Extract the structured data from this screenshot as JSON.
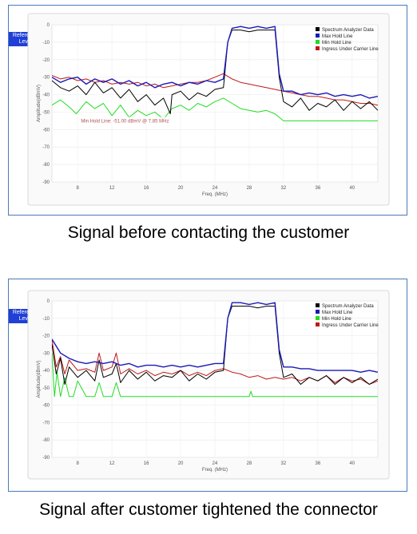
{
  "controls": {
    "reference_level_label": "Reference Level",
    "arrow_up": "▲",
    "arrow_down": "▼"
  },
  "colors": {
    "spectrum": "#000000",
    "max_hold": "#1a1ab8",
    "min_hold": "#22dd22",
    "ingress": "#c01818",
    "panel_border": "#4a7ab8",
    "button": "#1f3fd6"
  },
  "captions": {
    "before": "Signal before contacting the customer",
    "after": "Signal after customer tightened the connector"
  },
  "chart_data": [
    {
      "type": "line",
      "xlabel": "Freq. (MHz)",
      "ylabel": "Amplitude(dBmV)",
      "xlim": [
        5,
        43
      ],
      "ylim": [
        -90,
        0
      ],
      "xticks": [
        8,
        12,
        16,
        20,
        24,
        28,
        32,
        36,
        40
      ],
      "yticks": [
        0,
        -10,
        -20,
        -30,
        -40,
        -50,
        -60,
        -70,
        -80,
        -90
      ],
      "grid": true,
      "legend_position": "top-right",
      "annotation": "Min Hold Line: -51.00 dBmV @ 7.85 MHz",
      "series": [
        {
          "name": "Spectrum Analyzer Data",
          "color": "#000000",
          "x": [
            5,
            6,
            7,
            8,
            9,
            10,
            11,
            12,
            13,
            14,
            15,
            16,
            17,
            18,
            18.8,
            19,
            20,
            21,
            22,
            23,
            24,
            25,
            25.5,
            26,
            27,
            28,
            29,
            30,
            31,
            31.5,
            32,
            33,
            34,
            35,
            36,
            37,
            38,
            39,
            40,
            41,
            42,
            43
          ],
          "y": [
            -32,
            -36,
            -38,
            -35,
            -40,
            -33,
            -39,
            -36,
            -42,
            -37,
            -44,
            -40,
            -46,
            -42,
            -51,
            -40,
            -38,
            -43,
            -39,
            -41,
            -37,
            -36,
            -10,
            -3,
            -3,
            -4,
            -3,
            -3,
            -3,
            -30,
            -44,
            -47,
            -42,
            -49,
            -45,
            -47,
            -43,
            -49,
            -44,
            -48,
            -44,
            -49
          ]
        },
        {
          "name": "Max Hold Line",
          "color": "#1a1ab8",
          "x": [
            5,
            6,
            7,
            8,
            9,
            10,
            11,
            12,
            13,
            14,
            15,
            16,
            17,
            18,
            19,
            20,
            21,
            22,
            23,
            24,
            25,
            25.5,
            26,
            27,
            28,
            29,
            30,
            31,
            31.5,
            32,
            33,
            34,
            35,
            36,
            37,
            38,
            39,
            40,
            41,
            42,
            43
          ],
          "y": [
            -30,
            -33,
            -31,
            -30,
            -34,
            -31,
            -33,
            -31,
            -34,
            -32,
            -35,
            -33,
            -36,
            -34,
            -33,
            -35,
            -33,
            -34,
            -32,
            -33,
            -31,
            -10,
            -2,
            -1,
            -2,
            -1,
            -2,
            -1,
            -28,
            -38,
            -38,
            -40,
            -39,
            -40,
            -39,
            -41,
            -40,
            -41,
            -40,
            -42,
            -41
          ]
        },
        {
          "name": "Min Hold Line",
          "color": "#22dd22",
          "x": [
            5,
            6,
            7,
            7.85,
            9,
            10,
            11,
            12,
            13,
            14,
            15,
            16,
            17,
            18,
            19,
            20,
            21,
            22,
            23,
            24,
            25,
            26,
            27,
            28,
            29,
            30,
            31,
            32,
            33,
            34,
            35,
            36,
            37,
            38,
            39,
            40,
            41,
            42,
            43
          ],
          "y": [
            -46,
            -43,
            -47,
            -51,
            -44,
            -48,
            -45,
            -52,
            -46,
            -53,
            -49,
            -52,
            -50,
            -54,
            -48,
            -46,
            -49,
            -45,
            -47,
            -44,
            -42,
            -45,
            -48,
            -49,
            -50,
            -49,
            -51,
            -55,
            -55,
            -55,
            -55,
            -55,
            -55,
            -55,
            -55,
            -55,
            -55,
            -55,
            -55
          ]
        },
        {
          "name": "Ingress Under Carrier Line",
          "color": "#c01818",
          "x": [
            5,
            6,
            7,
            8,
            9,
            10,
            11,
            12,
            13,
            14,
            15,
            16,
            17,
            18,
            19,
            20,
            21,
            22,
            23,
            24,
            25,
            26,
            27,
            28,
            29,
            30,
            31,
            32,
            33,
            34,
            35,
            36,
            37,
            38,
            39,
            40,
            41,
            42,
            43
          ],
          "y": [
            -29,
            -31,
            -30,
            -32,
            -31,
            -33,
            -32,
            -34,
            -33,
            -34,
            -33,
            -35,
            -34,
            -36,
            -35,
            -34,
            -33,
            -33,
            -32,
            -30,
            -28,
            -31,
            -33,
            -34,
            -35,
            -36,
            -37,
            -38,
            -39,
            -40,
            -41,
            -41,
            -42,
            -43,
            -43,
            -44,
            -45,
            -45,
            -46
          ]
        }
      ]
    },
    {
      "type": "line",
      "xlabel": "Freq. (MHz)",
      "ylabel": "Amplitude(dBmV)",
      "xlim": [
        5,
        43
      ],
      "ylim": [
        -90,
        0
      ],
      "xticks": [
        8,
        12,
        16,
        20,
        24,
        28,
        32,
        36,
        40
      ],
      "yticks": [
        0,
        -10,
        -20,
        -30,
        -40,
        -50,
        -60,
        -70,
        -80,
        -90
      ],
      "grid": true,
      "legend_position": "top-right",
      "series": [
        {
          "name": "Spectrum Analyzer Data",
          "color": "#000000",
          "x": [
            5,
            5.5,
            6,
            6.5,
            7,
            8,
            9,
            10,
            10.5,
            11,
            12,
            12.5,
            13,
            14,
            15,
            16,
            17,
            18,
            19,
            20,
            21,
            22,
            23,
            24,
            25,
            25.5,
            26,
            27,
            28,
            29,
            30,
            31,
            31.5,
            32,
            33,
            34,
            35,
            36,
            37,
            38,
            39,
            40,
            41,
            42,
            43
          ],
          "y": [
            -25,
            -42,
            -33,
            -48,
            -38,
            -44,
            -40,
            -46,
            -34,
            -44,
            -42,
            -36,
            -47,
            -40,
            -45,
            -41,
            -46,
            -43,
            -44,
            -40,
            -46,
            -42,
            -45,
            -41,
            -40,
            -10,
            -3,
            -3,
            -3,
            -4,
            -3,
            -3,
            -30,
            -44,
            -42,
            -48,
            -44,
            -46,
            -43,
            -48,
            -44,
            -47,
            -44,
            -48,
            -45
          ]
        },
        {
          "name": "Max Hold Line",
          "color": "#1a1ab8",
          "x": [
            5,
            6,
            7,
            8,
            9,
            10,
            11,
            12,
            13,
            14,
            15,
            16,
            17,
            18,
            19,
            20,
            21,
            22,
            23,
            24,
            25,
            25.5,
            26,
            27,
            28,
            29,
            30,
            31,
            31.5,
            32,
            33,
            34,
            35,
            36,
            37,
            38,
            39,
            40,
            41,
            42,
            43
          ],
          "y": [
            -22,
            -30,
            -33,
            -35,
            -36,
            -35,
            -36,
            -35,
            -37,
            -36,
            -38,
            -37,
            -37,
            -38,
            -37,
            -38,
            -37,
            -38,
            -37,
            -36,
            -36,
            -10,
            -1,
            -1,
            -2,
            -1,
            -2,
            -1,
            -28,
            -38,
            -38,
            -39,
            -39,
            -40,
            -40,
            -40,
            -40,
            -40,
            -41,
            -40,
            -41
          ]
        },
        {
          "name": "Min Hold Line",
          "color": "#22dd22",
          "x": [
            5,
            5.3,
            5.6,
            6,
            6.5,
            7,
            7.5,
            8,
            9,
            10,
            10.5,
            11,
            12,
            12.5,
            13,
            14,
            15,
            16,
            20,
            24,
            28,
            28.2,
            28.4,
            32,
            36,
            40,
            43
          ],
          "y": [
            -30,
            -55,
            -41,
            -55,
            -44,
            -55,
            -55,
            -46,
            -55,
            -55,
            -47,
            -55,
            -55,
            -47,
            -55,
            -55,
            -55,
            -55,
            -55,
            -55,
            -55,
            -52,
            -55,
            -55,
            -55,
            -55,
            -55
          ]
        },
        {
          "name": "Ingress Under Carrier Line",
          "color": "#c01818",
          "x": [
            5,
            5.5,
            6,
            6.5,
            7,
            8,
            9,
            10,
            10.5,
            11,
            12,
            12.5,
            13,
            14,
            15,
            16,
            17,
            18,
            19,
            20,
            21,
            22,
            23,
            24,
            25,
            26,
            27,
            28,
            29,
            30,
            31,
            32,
            33,
            34,
            35,
            36,
            37,
            38,
            39,
            40,
            41,
            42,
            43
          ],
          "y": [
            -22,
            -38,
            -32,
            -42,
            -34,
            -40,
            -39,
            -41,
            -30,
            -40,
            -38,
            -30,
            -42,
            -39,
            -42,
            -40,
            -43,
            -41,
            -42,
            -40,
            -43,
            -41,
            -43,
            -40,
            -39,
            -41,
            -42,
            -44,
            -43,
            -45,
            -44,
            -45,
            -44,
            -46,
            -44,
            -46,
            -43,
            -47,
            -44,
            -46,
            -45,
            -48,
            -46
          ]
        }
      ]
    }
  ]
}
